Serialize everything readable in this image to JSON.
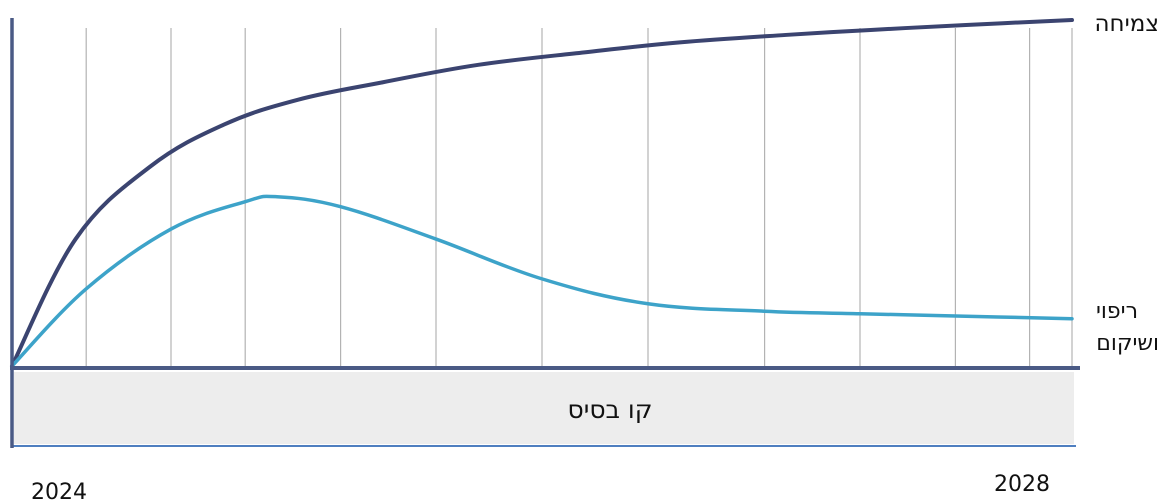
{
  "chart_data": {
    "type": "line",
    "x_start_label": "2024",
    "x_end_label": "2028",
    "baseline_label": "קו בסיס",
    "series": [
      {
        "name": "צמיחה",
        "color": "#3b4470",
        "points": [
          [
            0,
            0
          ],
          [
            0.06,
            0.51
          ],
          [
            0.13,
            0.8
          ],
          [
            0.2,
            0.97
          ],
          [
            0.27,
            1.07
          ],
          [
            0.35,
            1.14
          ],
          [
            0.44,
            1.21
          ],
          [
            0.54,
            1.26
          ],
          [
            0.63,
            1.3
          ],
          [
            0.73,
            1.33
          ],
          [
            0.81,
            1.35
          ],
          [
            0.9,
            1.37
          ],
          [
            1,
            1.39
          ]
        ]
      },
      {
        "name": "ריפוי ושיקום",
        "name_lines": [
          "ריפוי",
          "ושיקום"
        ],
        "color": "#3da3c9",
        "points": [
          [
            0,
            0
          ],
          [
            0.07,
            0.31
          ],
          [
            0.15,
            0.55
          ],
          [
            0.22,
            0.66
          ],
          [
            0.25,
            0.68
          ],
          [
            0.31,
            0.64
          ],
          [
            0.4,
            0.51
          ],
          [
            0.5,
            0.35
          ],
          [
            0.6,
            0.25
          ],
          [
            0.71,
            0.22
          ],
          [
            0.8,
            0.21
          ],
          [
            0.9,
            0.2
          ],
          [
            1,
            0.19
          ]
        ]
      }
    ],
    "gridlines_x": [
      0.07,
      0.15,
      0.22,
      0.31,
      0.4,
      0.5,
      0.6,
      0.71,
      0.8,
      0.89,
      0.96,
      1
    ],
    "ylim": [
      0,
      1.45
    ],
    "xlim": [
      0,
      1
    ],
    "grid": true,
    "legend": "right",
    "colors": {
      "axis": "#4a5a85",
      "grid": "#b3b3b3",
      "baseline_fill": "#ededed",
      "baseline_line": "#4f7fc0"
    }
  }
}
